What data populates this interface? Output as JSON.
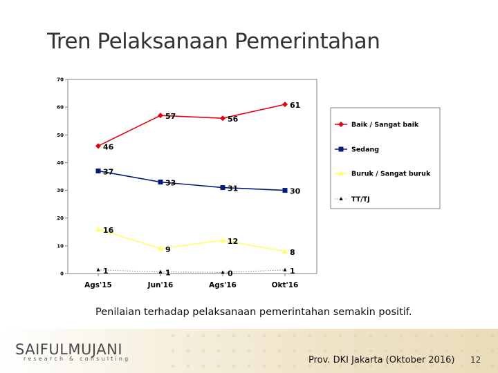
{
  "slide": {
    "title": "Tren Pelaksanaan Pemerintahan",
    "caption": "Penilaian terhadap pelaksanaan pemerintahan semakin positif.",
    "footer": "Prov. DKI Jakarta (Oktober 2016)",
    "page_number": "12",
    "logo": {
      "main": "SAIFULMUJANI",
      "sub": "research & consulting"
    }
  },
  "chart_data": {
    "type": "line",
    "categories": [
      "Ags'15",
      "Jun'16",
      "Ags'16",
      "Okt'16"
    ],
    "ylim": [
      0,
      70
    ],
    "yticks": [
      0,
      10,
      20,
      30,
      40,
      50,
      60,
      70
    ],
    "legend_position": "right",
    "series": [
      {
        "name": "Baik / Sangat baik",
        "values": [
          46,
          57,
          56,
          61
        ],
        "color": "#e3000f",
        "marker": "diamond",
        "labels": [
          "46",
          "57",
          "56",
          "61"
        ]
      },
      {
        "name": "Sedang",
        "values": [
          37,
          33,
          31,
          30
        ],
        "color": "#0a1a7a",
        "marker": "square",
        "labels": [
          "37",
          "33",
          "31",
          "30"
        ]
      },
      {
        "name": "Buruk / Sangat buruk",
        "values": [
          16,
          9,
          12,
          8
        ],
        "color": "#ffff66",
        "marker": "triangle",
        "labels": [
          "16",
          "9",
          "12",
          "8"
        ]
      },
      {
        "name": "TT/TJ",
        "values": [
          1.3,
          0.6,
          0.4,
          1.3
        ],
        "color": "#000000",
        "marker": "small-triangle",
        "dotted": true,
        "labels": [
          "1",
          "1",
          "0",
          "1"
        ]
      }
    ]
  }
}
